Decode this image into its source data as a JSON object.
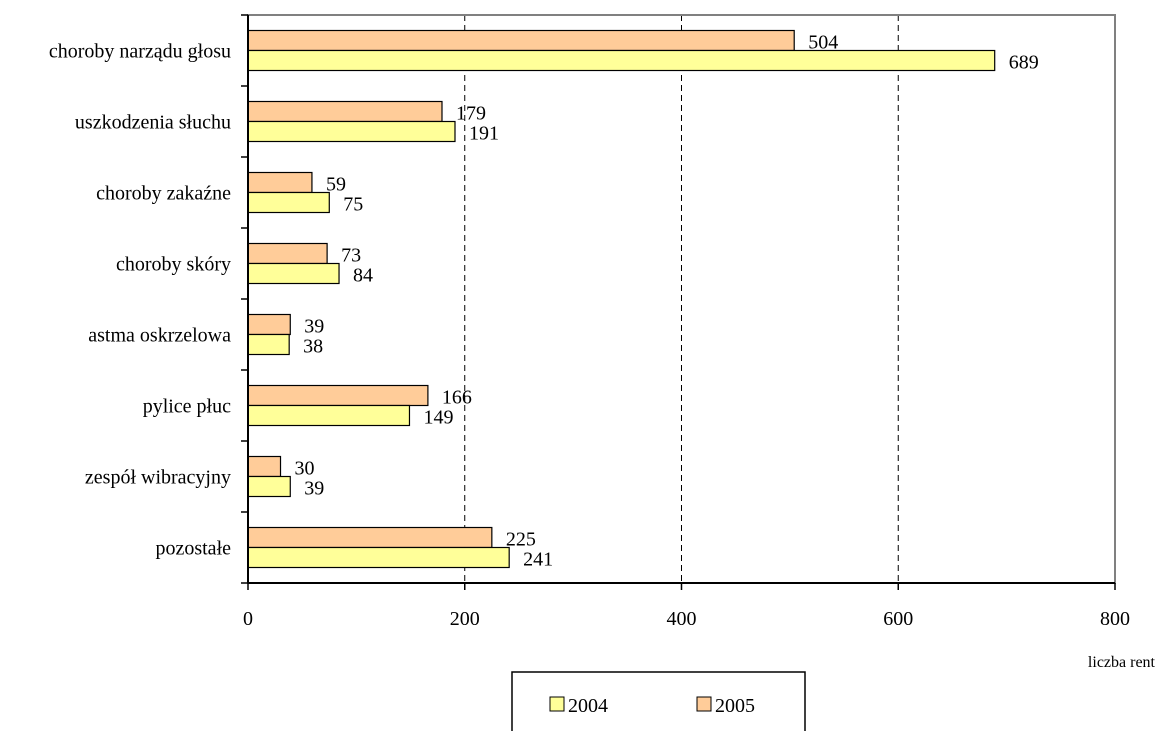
{
  "chart_data": {
    "type": "bar",
    "orientation": "horizontal",
    "categories": [
      "choroby narządu głosu",
      "uszkodzenia słuchu",
      "choroby zakaźne",
      "choroby skóry",
      "astma oskrzelowa",
      "pylice płuc",
      "zespół wibracyjny",
      "pozostałe"
    ],
    "series": [
      {
        "name": "2005",
        "color": "#FFCC99",
        "values": [
          504,
          179,
          59,
          73,
          39,
          166,
          30,
          225
        ]
      },
      {
        "name": "2004",
        "color": "#FFFF99",
        "values": [
          689,
          191,
          75,
          84,
          38,
          149,
          39,
          241
        ]
      }
    ],
    "xlim": [
      0,
      800
    ],
    "xticks": [
      0,
      200,
      400,
      600,
      800
    ],
    "xlabel": "liczba rent",
    "ylabel": "",
    "title": "",
    "grid": "vertical dashed",
    "legend": {
      "placement": "bottom-center",
      "entries": [
        "2004",
        "2005"
      ]
    }
  }
}
